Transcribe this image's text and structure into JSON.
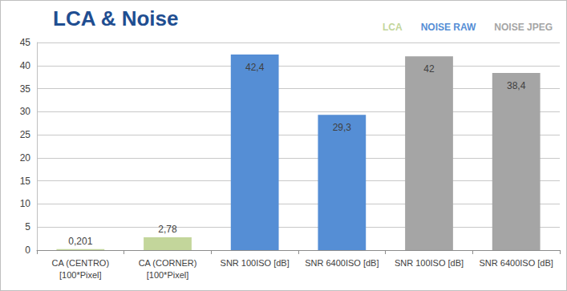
{
  "chart_data": {
    "type": "bar",
    "title": "LCA & Noise",
    "categories": [
      "CA (CENTRO)\n[100*Pixel]",
      "CA (CORNER)\n[100*Pixel]",
      "SNR 100ISO [dB]",
      "SNR 6400ISO [dB]",
      "SNR 100ISO [dB]",
      "SNR 6400ISO [dB]"
    ],
    "series": [
      {
        "name": "LCA",
        "color": "#c3d69b",
        "values": [
          0.201,
          2.78,
          null,
          null,
          null,
          null
        ],
        "value_labels": [
          "0,201",
          "2,78",
          null,
          null,
          null,
          null
        ]
      },
      {
        "name": "NOISE RAW",
        "color": "#558ed5",
        "values": [
          null,
          null,
          42.4,
          29.3,
          null,
          null
        ],
        "value_labels": [
          null,
          null,
          "42,4",
          "29,3",
          null,
          null
        ]
      },
      {
        "name": "NOISE JPEG",
        "color": "#a5a5a5",
        "values": [
          null,
          null,
          null,
          null,
          42,
          38.4
        ],
        "value_labels": [
          null,
          null,
          null,
          null,
          "42",
          "38,4"
        ]
      }
    ],
    "ylim": [
      0,
      45
    ],
    "yticks": [
      0,
      5,
      10,
      15,
      20,
      25,
      30,
      35,
      40,
      45
    ],
    "grid": true,
    "legend": "top-right",
    "data_labels": true
  }
}
